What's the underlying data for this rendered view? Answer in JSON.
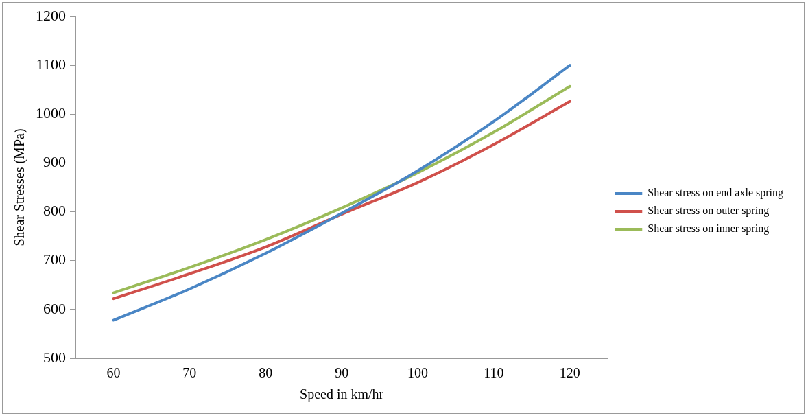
{
  "chart_data": {
    "type": "line",
    "xlabel": "Speed in km/hr",
    "ylabel": "Shear Stresses (MPa)",
    "categories": [
      "60",
      "70",
      "80",
      "90",
      "100",
      "110",
      "120"
    ],
    "series": [
      {
        "name": "Shear stress on end axle spring",
        "color": "#4a86c5",
        "values": [
          578,
          642,
          715,
          797,
          884,
          985,
          1100
        ]
      },
      {
        "name": "Shear stress on outer spring",
        "color": "#d0504b",
        "values": [
          622,
          673,
          728,
          795,
          860,
          938,
          1026
        ]
      },
      {
        "name": "Shear stress on inner spring",
        "color": "#9bbb59",
        "values": [
          634,
          686,
          743,
          808,
          880,
          963,
          1057
        ]
      }
    ],
    "ylim": [
      500,
      1200
    ],
    "yticks": [
      500,
      600,
      700,
      800,
      900,
      1000,
      1100,
      1200
    ],
    "grid": false,
    "legend": "right",
    "marker": "none",
    "line_style": "solid"
  }
}
